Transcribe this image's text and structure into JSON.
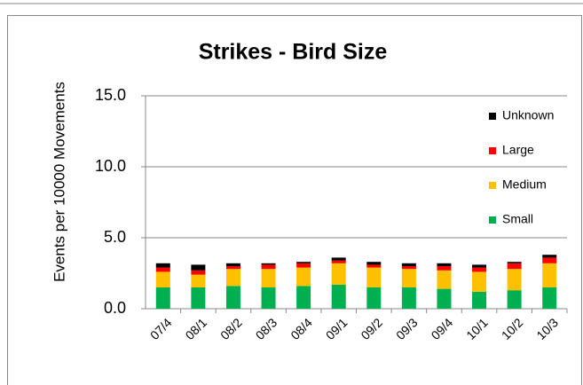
{
  "chart_data": {
    "type": "stacked_bar",
    "title": "Strikes - Bird Size",
    "y_axis_label": "Events per 10000 Movements",
    "categories": [
      "07/4",
      "08/1",
      "08/2",
      "08/3",
      "08/4",
      "09/1",
      "09/2",
      "09/3",
      "09/4",
      "10/1",
      "10/2",
      "10/3"
    ],
    "series": [
      {
        "name": "Small",
        "color": "#00b050",
        "values": [
          1.5,
          1.5,
          1.6,
          1.5,
          1.6,
          1.7,
          1.5,
          1.5,
          1.4,
          1.2,
          1.3,
          1.5
        ]
      },
      {
        "name": "Medium",
        "color": "#ffc000",
        "values": [
          1.1,
          0.9,
          1.2,
          1.3,
          1.3,
          1.5,
          1.4,
          1.3,
          1.3,
          1.4,
          1.5,
          1.7
        ]
      },
      {
        "name": "Large",
        "color": "#ff0000",
        "values": [
          0.3,
          0.3,
          0.2,
          0.3,
          0.3,
          0.2,
          0.2,
          0.2,
          0.3,
          0.3,
          0.4,
          0.4
        ]
      },
      {
        "name": "Unknown",
        "color": "#000000",
        "values": [
          0.3,
          0.4,
          0.2,
          0.1,
          0.1,
          0.2,
          0.2,
          0.2,
          0.2,
          0.2,
          0.1,
          0.2
        ]
      }
    ],
    "ylim": [
      0,
      15
    ],
    "yticks": [
      {
        "value": 0,
        "label": "0.0"
      },
      {
        "value": 5,
        "label": "5.0"
      },
      {
        "value": 10,
        "label": "10.0"
      },
      {
        "value": 15,
        "label": "15.0"
      }
    ],
    "grid": true,
    "legend": "right"
  }
}
